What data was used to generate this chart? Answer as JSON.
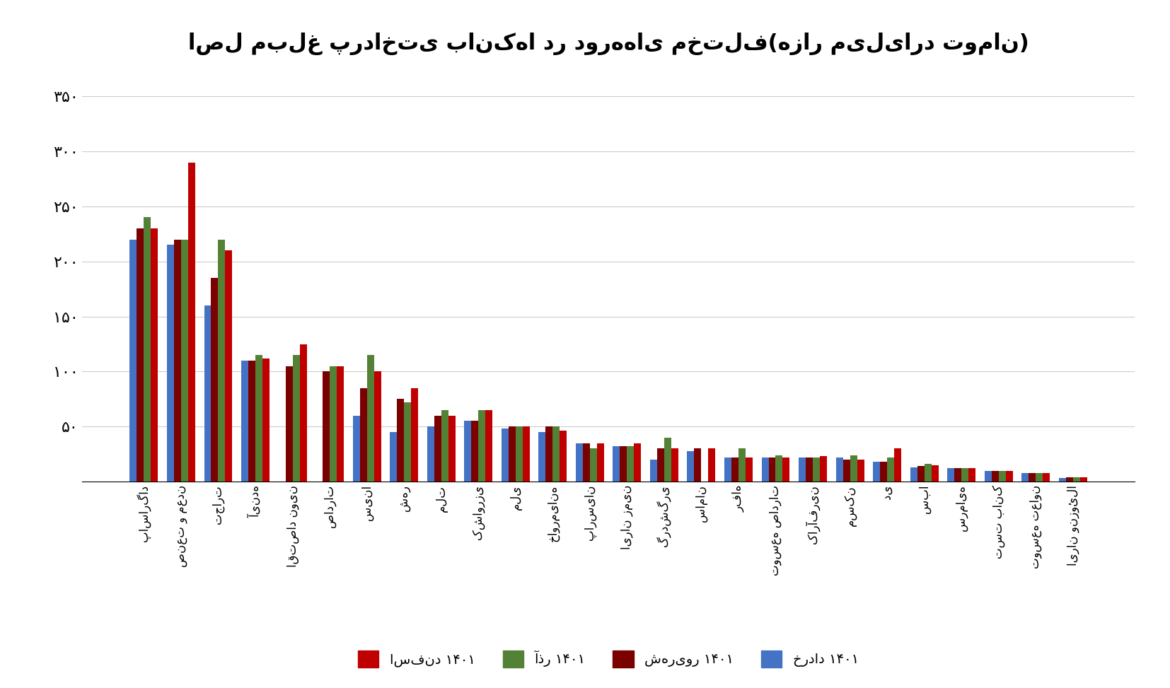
{
  "title": "اصل مبلغ پرداختی بانک‌ها در دورههای مختلف(هزار میلیارد تومان)",
  "categories": [
    "پاسارگاد",
    "صنعت و معدن",
    "تجارت",
    "آینده",
    "اقتصاد نوین",
    "صادرات",
    "سینا",
    "شهر",
    "ملت",
    "کشاورزی",
    "ملی",
    "خاورمیانه",
    "پارسیان",
    "ایران زمین",
    "گردشگری",
    "سامان",
    "رفاه",
    "توسعه صادرات",
    "کارآفرین",
    "مسکن",
    "دی",
    "سبا",
    "سرمایه",
    "تست بانک",
    "توسعه تعاون",
    "ایران ونزوئلا"
  ],
  "series": {
    "خرداد ۱۴۰۱": [
      220,
      215,
      160,
      110,
      0,
      0,
      60,
      45,
      50,
      55,
      48,
      45,
      35,
      32,
      20,
      28,
      22,
      22,
      22,
      22,
      18,
      13,
      12,
      10,
      8,
      3
    ],
    "شهریور ۱۴۰۱": [
      230,
      220,
      185,
      110,
      105,
      100,
      85,
      75,
      60,
      55,
      50,
      50,
      35,
      32,
      30,
      30,
      22,
      22,
      22,
      20,
      18,
      14,
      12,
      10,
      8,
      4
    ],
    "آذر ۱۴۰۱": [
      240,
      220,
      220,
      115,
      115,
      105,
      115,
      72,
      65,
      65,
      50,
      50,
      30,
      32,
      40,
      0,
      30,
      24,
      22,
      24,
      22,
      16,
      12,
      10,
      8,
      4
    ],
    "اسفند ۱۴۰۱": [
      230,
      290,
      210,
      112,
      125,
      105,
      100,
      85,
      60,
      65,
      50,
      46,
      35,
      35,
      30,
      30,
      22,
      22,
      23,
      20,
      30,
      15,
      12,
      10,
      8,
      4
    ]
  },
  "series_colors": {
    "خرداد ۱۴۰۱": "#4472C4",
    "شهریور ۱۴۰۱": "#7B0000",
    "آذر ۱۴۰۱": "#538135",
    "اسفند ۱۴۰۱": "#C00000"
  },
  "ylim": [
    0,
    375
  ],
  "yticks": [
    50,
    100,
    150,
    200,
    250,
    300,
    350
  ],
  "background_color": "#FFFFFF",
  "grid_color": "#CCCCCC",
  "title_fontsize": 22,
  "legend_order": [
    "خرداد ۱۴۰۱",
    "شهریور ۱۴۰۱",
    "آذر ۱۴۰۱",
    "اسفند ۱۴۰۱"
  ]
}
